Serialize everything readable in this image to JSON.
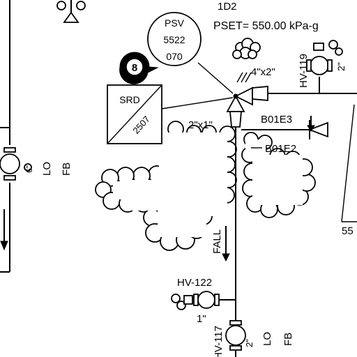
{
  "drawing": {
    "top_partial_tag": "1D2",
    "pset": "PSET= 550.00 kPa-g",
    "psv": {
      "type": "PSV",
      "number": "5522",
      "suffix": "070"
    },
    "balloon_number": "8",
    "srd": {
      "label": "SRD",
      "number": "2507"
    },
    "reducer_upper": "4\"x2\"",
    "reducer_lower": "2\"x1\"",
    "valve_b01e3": "B01E3",
    "line_b01e2": "B01E2",
    "hv119": {
      "tag": "HV-119",
      "size": "2\""
    },
    "hv122": {
      "tag": "HV-122",
      "size": "1\""
    },
    "hv117": {
      "tag": "HV-117",
      "size": "2\""
    },
    "left_valve": {
      "size": "6\"",
      "lo": "LO",
      "fb": "FB"
    },
    "bottom_valve": {
      "lo": "LO",
      "fb": "FB"
    },
    "fall_label": "FALL",
    "right_partial": "55"
  }
}
